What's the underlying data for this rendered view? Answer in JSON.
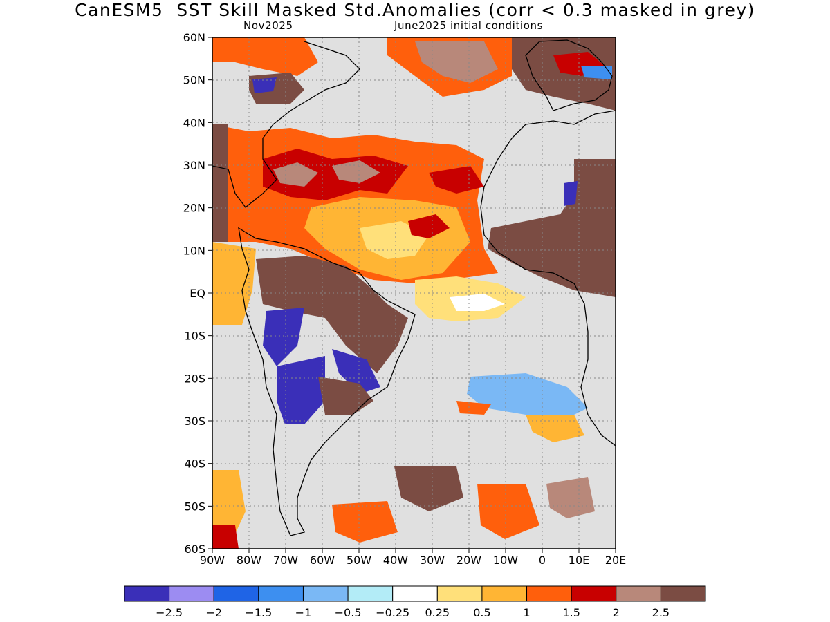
{
  "title": "CanESM5  SST Skill Masked Std.Anomalies (corr < 0.3 masked in grey)",
  "subtitle_left": "Nov2025",
  "subtitle_right": "June2025 initial conditions",
  "map": {
    "lon_range": [
      -90,
      20
    ],
    "lat_range": [
      -60,
      60
    ],
    "lat_labels": [
      "60N",
      "50N",
      "40N",
      "30N",
      "20N",
      "10N",
      "EQ",
      "10S",
      "20S",
      "30S",
      "40S",
      "50S",
      "60S"
    ],
    "lon_labels": [
      "90W",
      "80W",
      "70W",
      "60W",
      "50W",
      "40W",
      "30W",
      "20W",
      "10W",
      "0",
      "10E",
      "20E"
    ],
    "mask_color": "#e0e0e0",
    "grid": true
  },
  "colorbar": {
    "colors": [
      "#3a2fb8",
      "#9c8cf2",
      "#1f64e6",
      "#3d8ff0",
      "#7ab8f5",
      "#b3ecf7",
      "#ffffff",
      "#ffe07a",
      "#ffb534",
      "#ff5f0c",
      "#c80000",
      "#b8887a",
      "#7b4c43"
    ],
    "labels": [
      "−2.5",
      "−2",
      "−1.5",
      "−1",
      "−0.5",
      "−0.25",
      "0.25",
      "0.5",
      "1",
      "1.5",
      "2",
      "2.5"
    ]
  }
}
